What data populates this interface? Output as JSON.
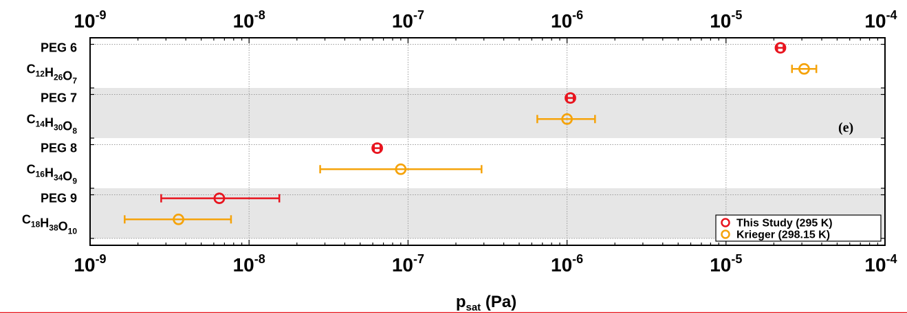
{
  "chart_data": {
    "type": "scatter",
    "x_scale": "log",
    "xlim": [
      1e-09,
      0.0001
    ],
    "x_ticks": [
      {
        "base": "10",
        "exp": "-9"
      },
      {
        "base": "10",
        "exp": "-8"
      },
      {
        "base": "10",
        "exp": "-7"
      },
      {
        "base": "10",
        "exp": "-6"
      },
      {
        "base": "10",
        "exp": "-5"
      },
      {
        "base": "10",
        "exp": "-4"
      }
    ],
    "xlabel": {
      "main": "p",
      "sub": "sat",
      "rest": " (Pa)"
    },
    "categories": [
      {
        "name": "PEG 6",
        "formula": [
          [
            "C",
            "12"
          ],
          [
            "H",
            "26"
          ],
          [
            "O",
            "7"
          ]
        ]
      },
      {
        "name": "PEG 7",
        "formula": [
          [
            "C",
            "14"
          ],
          [
            "H",
            "30"
          ],
          [
            "O",
            "8"
          ]
        ]
      },
      {
        "name": "PEG 8",
        "formula": [
          [
            "C",
            "16"
          ],
          [
            "H",
            "34"
          ],
          [
            "O",
            "9"
          ]
        ]
      },
      {
        "name": "PEG 9",
        "formula": [
          [
            "C",
            "18"
          ],
          [
            "H",
            "38"
          ],
          [
            "O",
            "10"
          ]
        ]
      }
    ],
    "series": [
      {
        "name": "This Study (295 K)",
        "color": "#e8141e",
        "points": [
          {
            "category": "PEG 6",
            "x": 2.2e-05,
            "xerr_low": 2.1e-05,
            "xerr_high": 2.3e-05
          },
          {
            "category": "PEG 7",
            "x": 1.05e-06,
            "xerr_low": 1e-06,
            "xerr_high": 1.1e-06
          },
          {
            "category": "PEG 8",
            "x": 6.4e-08,
            "xerr_low": 6.1e-08,
            "xerr_high": 6.7e-08
          },
          {
            "category": "PEG 9",
            "x": 6.5e-09,
            "xerr_low": 2.8e-09,
            "xerr_high": 1.55e-08
          }
        ]
      },
      {
        "name": "Krieger (298.15 K)",
        "color": "#f5a30a",
        "points": [
          {
            "category": "PEG 6",
            "x": 3.1e-05,
            "xerr_low": 2.6e-05,
            "xerr_high": 3.7e-05
          },
          {
            "category": "PEG 7",
            "x": 1e-06,
            "xerr_low": 6.5e-07,
            "xerr_high": 1.5e-06
          },
          {
            "category": "PEG 8",
            "x": 9e-08,
            "xerr_low": 2.8e-08,
            "xerr_high": 2.9e-07
          },
          {
            "category": "PEG 9",
            "x": 3.6e-09,
            "xerr_low": 1.65e-09,
            "xerr_high": 7.7e-09
          }
        ]
      }
    ],
    "annotation": "(e)",
    "grid": true,
    "legend_position": "bottom-right"
  },
  "colors": {
    "band": "#e6e6e6",
    "grid": "#9a9a9a",
    "frame": "#000000",
    "rule": "#e8141e"
  }
}
